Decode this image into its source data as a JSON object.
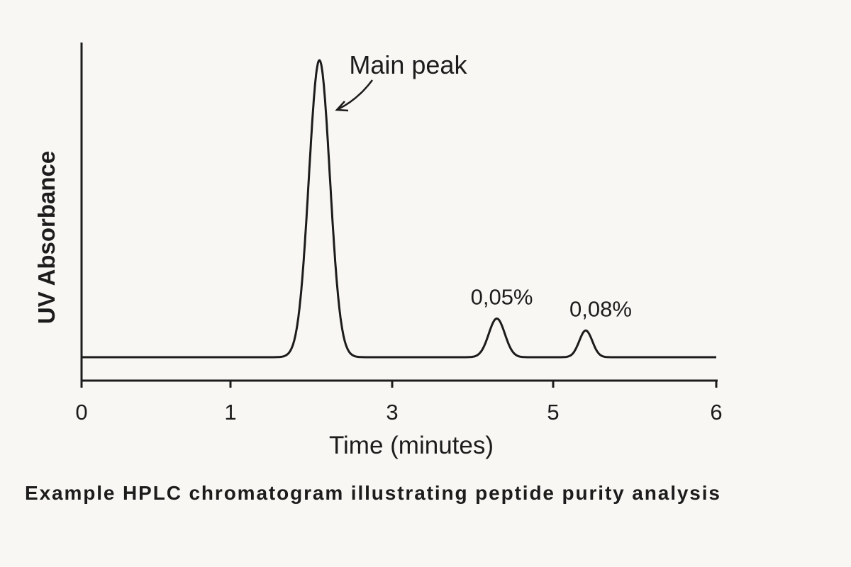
{
  "chart_data": {
    "type": "line",
    "title": "",
    "caption": "Example HPLC chromatogram illustrating peptide purity analysis",
    "xlabel": "Time (minutes)",
    "ylabel": "UV Absorbance",
    "x_ticks": [
      0,
      1,
      3,
      5,
      6
    ],
    "x_tick_labels": [
      "0",
      "1",
      "3",
      "5",
      "6"
    ],
    "xlim": [
      0,
      6
    ],
    "ylim": [
      -0.08,
      1.06
    ],
    "grid": false,
    "legend": "none",
    "line_color": "#1c1c1c",
    "background_color": "#f9f7f4",
    "baseline": 0,
    "peaks": [
      {
        "time": 2.1,
        "height": 1.0,
        "width": 0.13,
        "label": "Main peak"
      },
      {
        "time": 4.3,
        "height": 0.13,
        "width": 0.1,
        "label": "0,05%"
      },
      {
        "time": 5.2,
        "height": 0.09,
        "width": 0.04,
        "label": "0,08%"
      }
    ]
  }
}
